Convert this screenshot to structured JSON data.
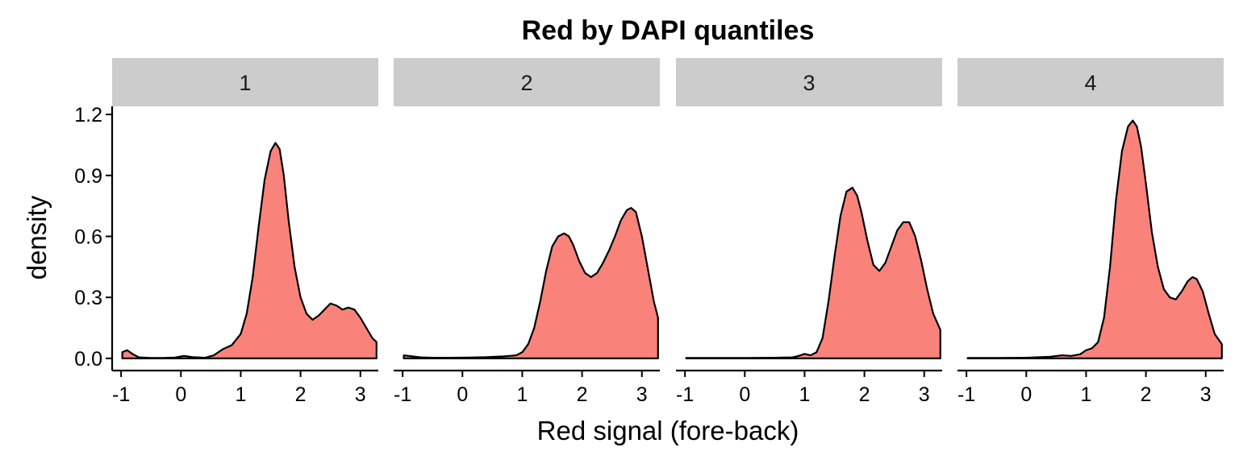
{
  "chart_data": {
    "type": "area",
    "title": "Red by DAPI quantiles",
    "xlabel": "Red signal (fore-back)",
    "ylabel": "density",
    "xlim": [
      -1.15,
      3.3
    ],
    "ylim": [
      -0.06,
      1.24
    ],
    "x_ticks": [
      "-1",
      "0",
      "1",
      "2",
      "3"
    ],
    "x_tick_values": [
      -1,
      0,
      1,
      2,
      3
    ],
    "y_ticks": [
      "0.0",
      "0.3",
      "0.6",
      "0.9",
      "1.2"
    ],
    "y_tick_values": [
      0,
      0.3,
      0.6,
      0.9,
      1.2
    ],
    "fill_color": "#F8766D",
    "fill_opacity": 0.9,
    "strip_color": "#CCCCCC",
    "grid": false,
    "legend": "none",
    "panels": [
      {
        "label": "1",
        "x": [
          -0.98,
          -0.9,
          -0.8,
          -0.7,
          -0.5,
          -0.3,
          -0.1,
          0.05,
          0.2,
          0.4,
          0.55,
          0.7,
          0.85,
          1.0,
          1.1,
          1.2,
          1.3,
          1.4,
          1.5,
          1.58,
          1.65,
          1.72,
          1.8,
          1.9,
          2.0,
          2.1,
          2.2,
          2.3,
          2.4,
          2.5,
          2.6,
          2.7,
          2.8,
          2.9,
          3.0,
          3.1,
          3.2,
          3.27
        ],
        "y": [
          0.03,
          0.04,
          0.02,
          0.005,
          0.002,
          0.002,
          0.004,
          0.012,
          0.006,
          0.003,
          0.015,
          0.045,
          0.065,
          0.12,
          0.22,
          0.4,
          0.65,
          0.88,
          1.02,
          1.06,
          1.03,
          0.9,
          0.68,
          0.45,
          0.3,
          0.22,
          0.19,
          0.21,
          0.24,
          0.27,
          0.26,
          0.24,
          0.25,
          0.24,
          0.2,
          0.15,
          0.1,
          0.08
        ]
      },
      {
        "label": "2",
        "x": [
          -0.98,
          -0.9,
          -0.7,
          -0.5,
          -0.2,
          0.1,
          0.4,
          0.7,
          0.9,
          1.0,
          1.1,
          1.2,
          1.3,
          1.4,
          1.5,
          1.6,
          1.7,
          1.78,
          1.85,
          1.95,
          2.05,
          2.15,
          2.25,
          2.35,
          2.45,
          2.55,
          2.65,
          2.75,
          2.82,
          2.9,
          3.0,
          3.1,
          3.2,
          3.27
        ],
        "y": [
          0.015,
          0.012,
          0.005,
          0.003,
          0.003,
          0.004,
          0.006,
          0.01,
          0.015,
          0.03,
          0.07,
          0.15,
          0.28,
          0.43,
          0.55,
          0.6,
          0.615,
          0.6,
          0.56,
          0.48,
          0.42,
          0.4,
          0.42,
          0.47,
          0.53,
          0.6,
          0.68,
          0.73,
          0.74,
          0.72,
          0.6,
          0.44,
          0.28,
          0.2
        ]
      },
      {
        "label": "3",
        "x": [
          -0.98,
          -0.5,
          0,
          0.5,
          0.8,
          0.9,
          1.0,
          1.1,
          1.2,
          1.3,
          1.4,
          1.5,
          1.6,
          1.7,
          1.8,
          1.88,
          1.95,
          2.05,
          2.15,
          2.25,
          2.35,
          2.45,
          2.55,
          2.65,
          2.75,
          2.85,
          2.95,
          3.05,
          3.15,
          3.27
        ],
        "y": [
          0.002,
          0.002,
          0.002,
          0.003,
          0.005,
          0.012,
          0.022,
          0.015,
          0.03,
          0.1,
          0.28,
          0.5,
          0.7,
          0.82,
          0.84,
          0.8,
          0.72,
          0.58,
          0.46,
          0.43,
          0.47,
          0.55,
          0.63,
          0.67,
          0.67,
          0.6,
          0.48,
          0.34,
          0.22,
          0.14
        ]
      },
      {
        "label": "4",
        "x": [
          -0.98,
          -0.5,
          0,
          0.4,
          0.6,
          0.75,
          0.9,
          1.0,
          1.1,
          1.2,
          1.3,
          1.4,
          1.5,
          1.6,
          1.7,
          1.78,
          1.85,
          1.92,
          2.0,
          2.1,
          2.2,
          2.3,
          2.4,
          2.5,
          2.6,
          2.7,
          2.78,
          2.85,
          2.95,
          3.05,
          3.15,
          3.27
        ],
        "y": [
          0.002,
          0.002,
          0.003,
          0.008,
          0.015,
          0.012,
          0.02,
          0.04,
          0.05,
          0.08,
          0.2,
          0.45,
          0.78,
          1.02,
          1.14,
          1.17,
          1.14,
          1.04,
          0.86,
          0.62,
          0.45,
          0.34,
          0.3,
          0.29,
          0.33,
          0.38,
          0.4,
          0.39,
          0.33,
          0.22,
          0.12,
          0.07
        ]
      }
    ]
  }
}
